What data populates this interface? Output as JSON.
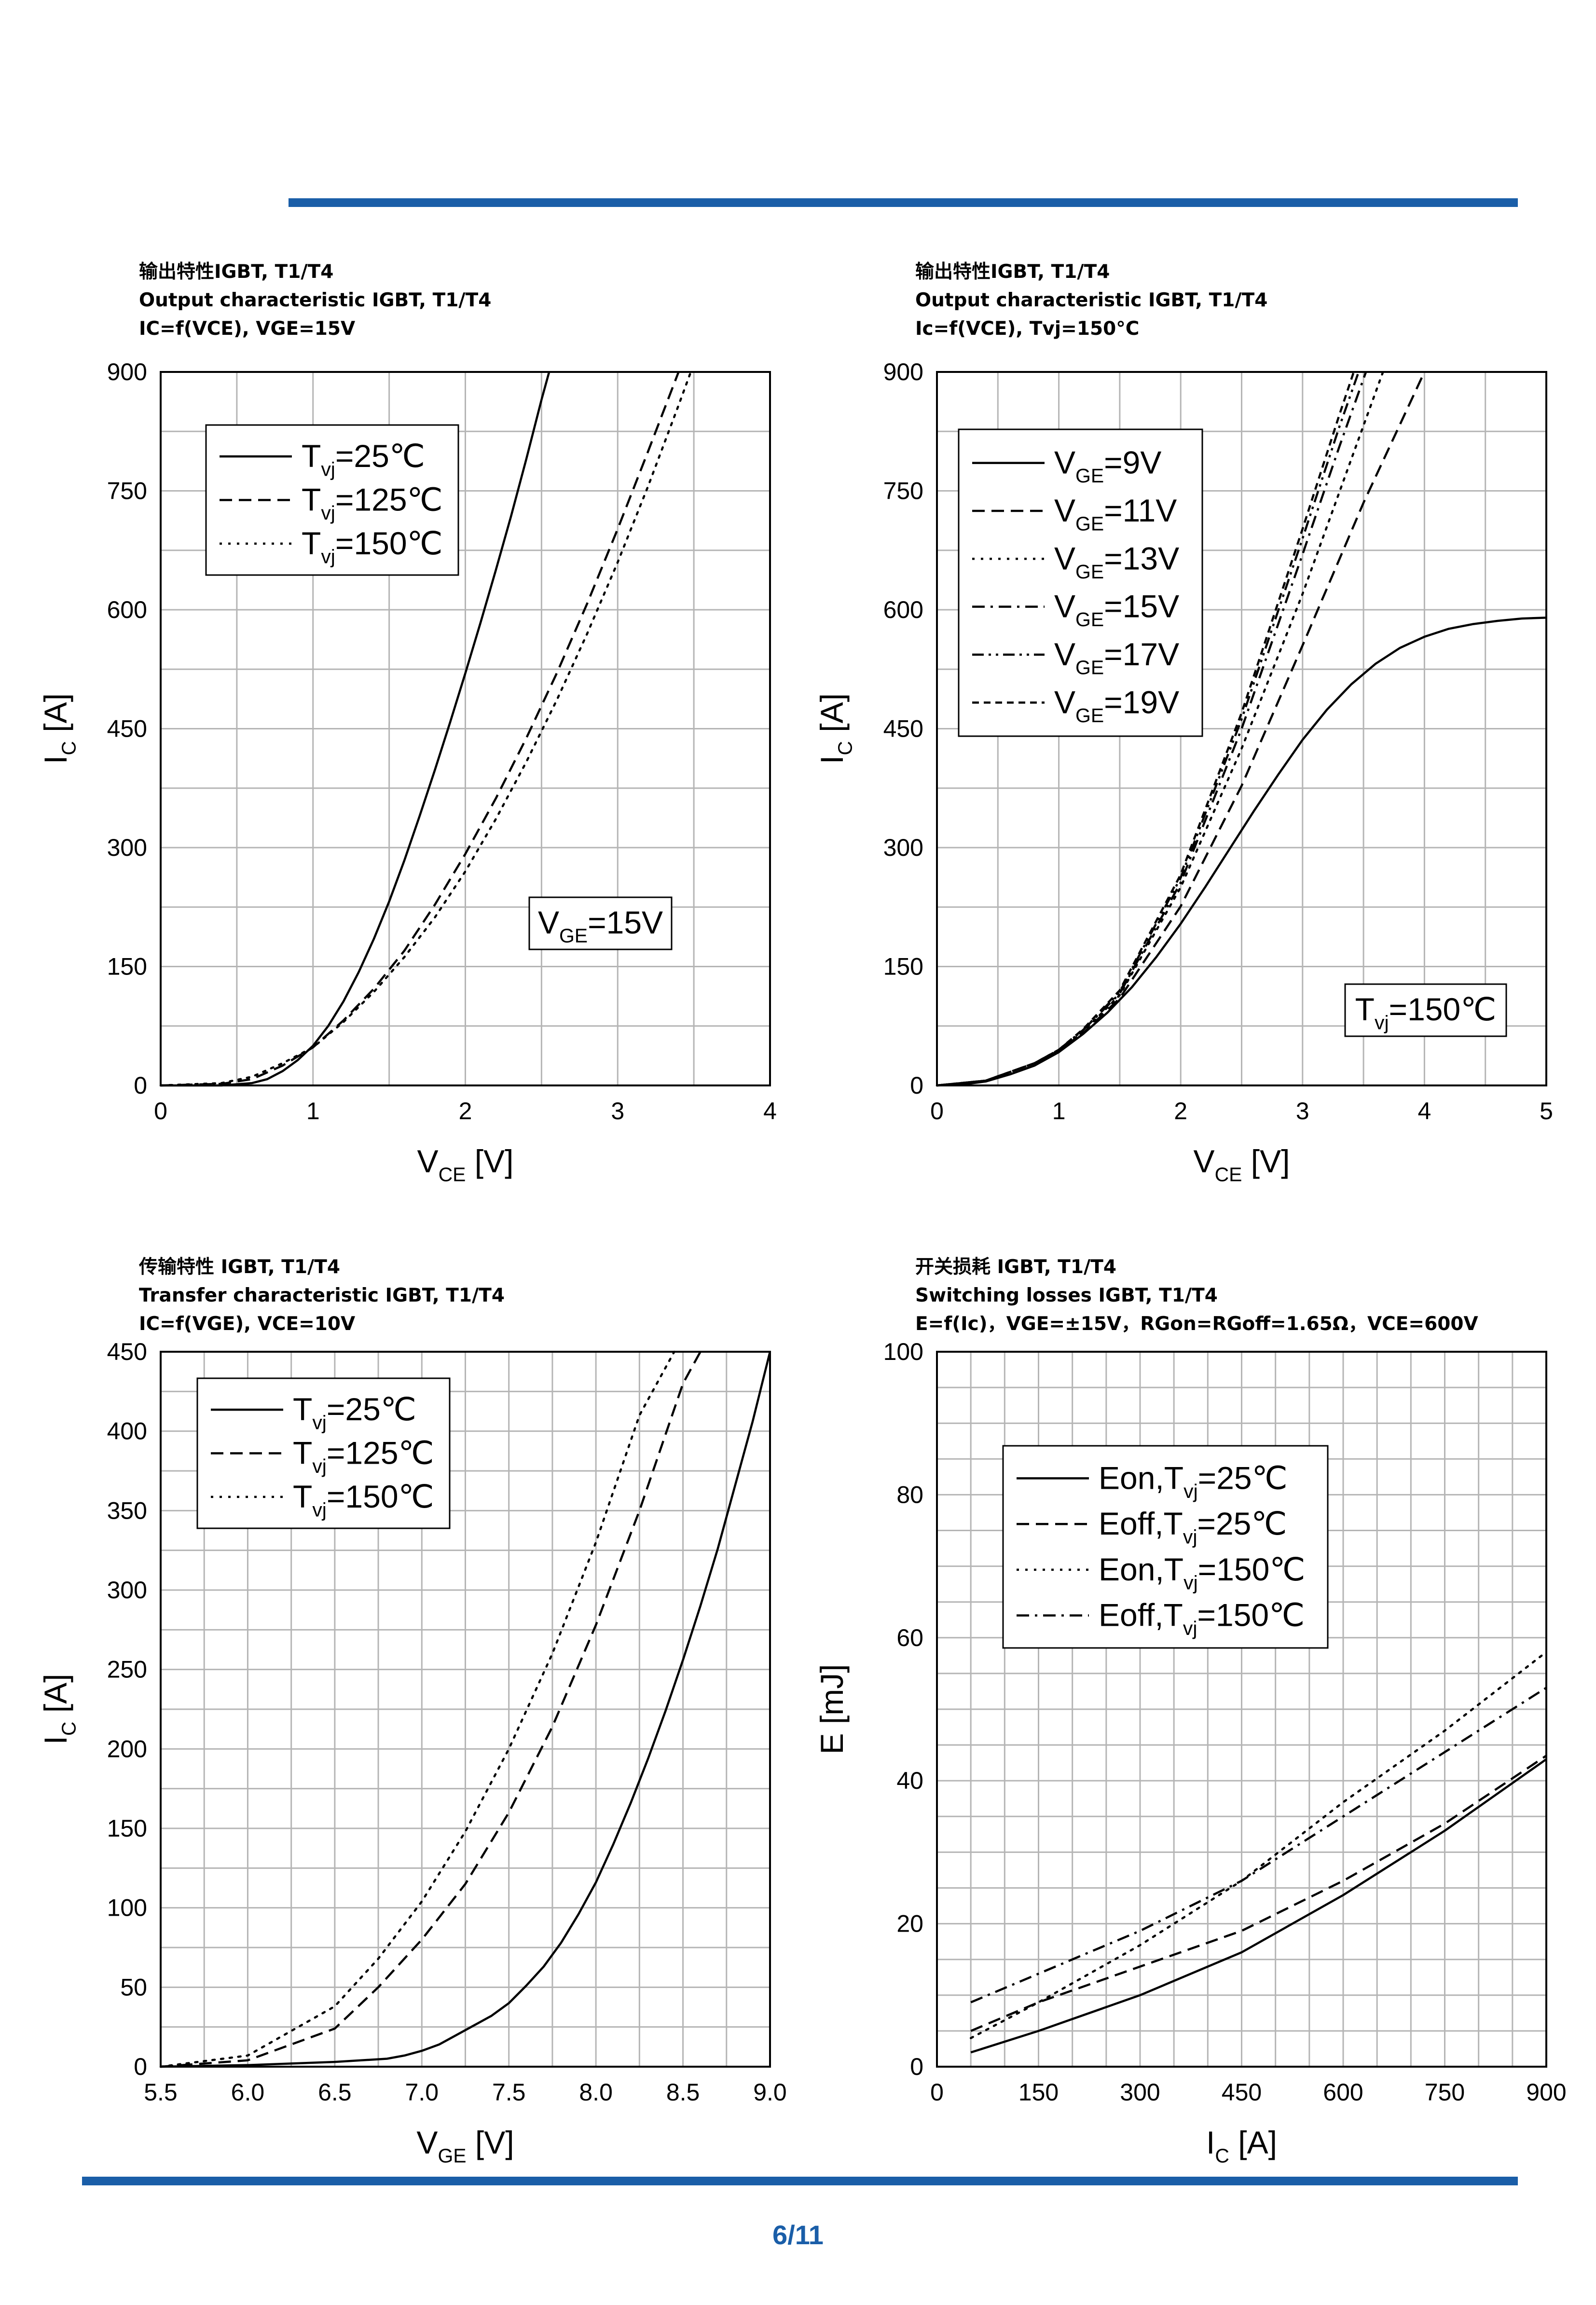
{
  "page": {
    "number": "6/11",
    "accent": "#1a5ea8"
  },
  "chart_data": [
    {
      "id": "c1",
      "type": "line",
      "title": [
        "输出特性IGBT, T1/T4",
        "Output characteristic IGBT, T1/T4",
        "IC=f(VCE), VGE=15V"
      ],
      "xlabel": "VCE [V]",
      "ylabel": "IC [A]",
      "xlim": [
        0,
        4
      ],
      "ylim": [
        0,
        900
      ],
      "xticks": [
        0,
        1,
        2,
        3,
        4
      ],
      "yticks": [
        0,
        150,
        300,
        450,
        600,
        750,
        900
      ],
      "xgrid_step": 0.5,
      "ygrid_step": 75,
      "annotation": "VGE=15V",
      "legend_position": "top-left",
      "series": [
        {
          "name": "Tvj=25℃",
          "dash": "solid",
          "x": [
            0,
            0.4,
            0.6,
            0.7,
            0.8,
            0.9,
            1.0,
            1.1,
            1.2,
            1.3,
            1.4,
            1.5,
            1.6,
            1.7,
            1.8,
            1.9,
            2.0,
            2.1,
            2.2,
            2.3,
            2.4,
            2.5,
            2.55
          ],
          "y": [
            0,
            0,
            3,
            8,
            18,
            32,
            50,
            75,
            106,
            143,
            185,
            232,
            284,
            340,
            398,
            458,
            520,
            584,
            650,
            718,
            790,
            865,
            900
          ]
        },
        {
          "name": "Tvj=125℃",
          "dash": "dash",
          "x": [
            0,
            0.4,
            0.6,
            0.8,
            1.0,
            1.2,
            1.4,
            1.6,
            1.8,
            2.0,
            2.2,
            2.4,
            2.6,
            2.8,
            3.0,
            3.2,
            3.4
          ],
          "y": [
            0,
            2,
            8,
            25,
            48,
            82,
            122,
            170,
            228,
            292,
            362,
            438,
            520,
            608,
            702,
            800,
            900
          ]
        },
        {
          "name": "Tvj=150℃",
          "dash": "dot",
          "x": [
            0,
            0.4,
            0.6,
            0.8,
            1.0,
            1.2,
            1.4,
            1.6,
            1.8,
            2.0,
            2.2,
            2.4,
            2.6,
            2.8,
            3.0,
            3.2,
            3.4,
            3.48
          ],
          "y": [
            0,
            3,
            11,
            28,
            48,
            80,
            118,
            162,
            212,
            270,
            336,
            408,
            486,
            570,
            660,
            756,
            858,
            900
          ]
        }
      ]
    },
    {
      "id": "c2",
      "type": "line",
      "title": [
        "输出特性IGBT, T1/T4",
        "Output characteristic IGBT, T1/T4",
        "Ic=f(VCE), Tvj=150°C"
      ],
      "xlabel": "VCE [V]",
      "ylabel": "IC [A]",
      "xlim": [
        0,
        5
      ],
      "ylim": [
        0,
        900
      ],
      "xticks": [
        0,
        1,
        2,
        3,
        4,
        5
      ],
      "yticks": [
        0,
        150,
        300,
        450,
        600,
        750,
        900
      ],
      "xgrid_step": 0.5,
      "ygrid_step": 75,
      "annotation": "Tvj=150℃",
      "legend_position": "top-left",
      "series": [
        {
          "name": "VGE=9V",
          "dash": "solid",
          "x": [
            0,
            0.2,
            0.4,
            0.6,
            0.8,
            1.0,
            1.2,
            1.4,
            1.6,
            1.8,
            2.0,
            2.2,
            2.4,
            2.6,
            2.8,
            3.0,
            3.2,
            3.4,
            3.6,
            3.8,
            4.0,
            4.2,
            4.4,
            4.6,
            4.8,
            5.0
          ],
          "y": [
            0,
            1,
            5,
            14,
            25,
            42,
            65,
            92,
            124,
            162,
            204,
            250,
            298,
            346,
            392,
            436,
            474,
            506,
            532,
            552,
            566,
            576,
            582,
            586,
            589,
            590
          ]
        },
        {
          "name": "VGE=11V",
          "dash": "dash",
          "x": [
            0,
            0.4,
            0.8,
            1.0,
            1.2,
            1.5,
            2.0,
            2.5,
            3.0,
            3.5,
            4.0
          ],
          "y": [
            0,
            6,
            28,
            44,
            66,
            110,
            226,
            378,
            555,
            735,
            900
          ]
        },
        {
          "name": "VGE=13V",
          "dash": "dot",
          "x": [
            0,
            0.4,
            0.8,
            1.0,
            1.2,
            1.5,
            2.0,
            2.5,
            3.0,
            3.4,
            3.66
          ],
          "y": [
            0,
            6,
            28,
            44,
            68,
            114,
            250,
            425,
            620,
            790,
            900
          ]
        },
        {
          "name": "VGE=15V",
          "dash": "dashdot",
          "x": [
            0,
            0.4,
            0.8,
            1.0,
            1.2,
            1.5,
            2.0,
            2.5,
            3.0,
            3.3,
            3.52
          ],
          "y": [
            0,
            6,
            28,
            45,
            70,
            116,
            256,
            450,
            670,
            805,
            900
          ]
        },
        {
          "name": "VGE=17V",
          "dash": "dashdotdot",
          "x": [
            0,
            0.4,
            0.8,
            1.0,
            1.2,
            1.5,
            2.0,
            2.5,
            3.0,
            3.3,
            3.46
          ],
          "y": [
            0,
            6,
            28,
            45,
            70,
            118,
            262,
            462,
            690,
            830,
            900
          ]
        },
        {
          "name": "VGE=19V",
          "dash": "shortdash",
          "x": [
            0,
            0.4,
            0.8,
            1.0,
            1.2,
            1.5,
            2.0,
            2.5,
            3.0,
            3.3,
            3.42
          ],
          "y": [
            0,
            6,
            28,
            45,
            71,
            120,
            266,
            470,
            702,
            845,
            900
          ]
        }
      ]
    },
    {
      "id": "c3",
      "type": "line",
      "title": [
        "传输特性 IGBT, T1/T4",
        " Transfer characteristic IGBT, T1/T4",
        "IC=f(VGE), VCE=10V"
      ],
      "xlabel": "VGE [V]",
      "ylabel": "IC [A]",
      "xlim": [
        5.5,
        9.0
      ],
      "ylim": [
        0,
        450
      ],
      "xticks": [
        "5.5",
        "6.0",
        "6.5",
        "7.0",
        "7.5",
        "8.0",
        "8.5",
        "9.0"
      ],
      "yticks": [
        0,
        50,
        100,
        150,
        200,
        250,
        300,
        350,
        400,
        450
      ],
      "xgrid_step": 0.25,
      "ygrid_step": 25,
      "annotation": "",
      "legend_position": "top-left",
      "series": [
        {
          "name": "Tvj=25℃",
          "dash": "solid",
          "x": [
            5.5,
            6.0,
            6.5,
            6.8,
            6.9,
            7.0,
            7.1,
            7.2,
            7.3,
            7.4,
            7.5,
            7.6,
            7.7,
            7.8,
            7.9,
            8.0,
            8.1,
            8.2,
            8.3,
            8.4,
            8.5,
            8.6,
            8.7,
            8.8,
            8.9,
            9.0
          ],
          "y": [
            0,
            1,
            3,
            5,
            7,
            10,
            14,
            20,
            26,
            32,
            40,
            51,
            63,
            78,
            96,
            116,
            140,
            166,
            194,
            224,
            256,
            290,
            326,
            366,
            406,
            450
          ]
        },
        {
          "name": "Tvj=125℃",
          "dash": "dash",
          "x": [
            5.5,
            6.0,
            6.5,
            6.75,
            7.0,
            7.25,
            7.5,
            7.75,
            8.0,
            8.25,
            8.5,
            8.6
          ],
          "y": [
            0,
            4,
            24,
            50,
            80,
            115,
            160,
            214,
            278,
            350,
            430,
            450
          ]
        },
        {
          "name": "Tvj=150℃",
          "dash": "dot",
          "x": [
            5.5,
            6.0,
            6.5,
            6.75,
            7.0,
            7.25,
            7.5,
            7.75,
            8.0,
            8.25,
            8.45
          ],
          "y": [
            0,
            7,
            38,
            68,
            104,
            148,
            200,
            260,
            330,
            410,
            450
          ]
        }
      ]
    },
    {
      "id": "c4",
      "type": "line",
      "title": [
        "开关损耗 IGBT, T1/T4",
        " Switching losses IGBT, T1/T4",
        "E=f(Ic)，VGE=±15V，RGon=RGoff=1.65Ω，VCE=600V"
      ],
      "xlabel": "IC [A]",
      "ylabel": "E [mJ]",
      "xlim": [
        0,
        900
      ],
      "ylim": [
        0,
        100
      ],
      "xticks": [
        0,
        150,
        300,
        450,
        600,
        750,
        900
      ],
      "yticks": [
        0,
        20,
        40,
        60,
        80,
        100
      ],
      "xgrid_step": 50,
      "ygrid_step": 5,
      "annotation": "",
      "legend_position": "top-right",
      "series": [
        {
          "name": "Eon,Tvj=25℃",
          "dash": "solid",
          "x": [
            50,
            150,
            300,
            450,
            600,
            750,
            900
          ],
          "y": [
            2,
            5,
            10,
            16,
            24,
            33,
            43
          ]
        },
        {
          "name": "Eoff,Tvj=25℃",
          "dash": "dash",
          "x": [
            50,
            150,
            300,
            450,
            600,
            750,
            900
          ],
          "y": [
            5,
            9,
            14,
            19,
            26,
            34,
            43.5
          ]
        },
        {
          "name": "Eon,Tvj=150℃",
          "dash": "dot",
          "x": [
            50,
            150,
            300,
            450,
            600,
            750,
            900
          ],
          "y": [
            4,
            9,
            17,
            26,
            37,
            47,
            58
          ]
        },
        {
          "name": "Eoff,Tvj=150℃",
          "dash": "dashdot",
          "x": [
            50,
            150,
            300,
            450,
            600,
            750,
            900
          ],
          "y": [
            9,
            13,
            19,
            26,
            35,
            44,
            53
          ]
        }
      ]
    }
  ]
}
